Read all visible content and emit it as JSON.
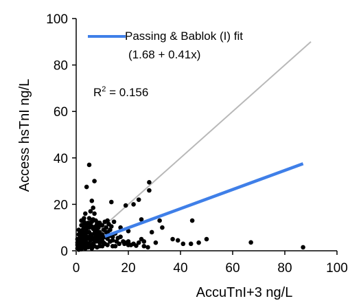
{
  "chart_data": {
    "type": "scatter",
    "xlabel": "AccuTnI+3 ng/L",
    "ylabel": "Access hsTnI ng/L",
    "xlim": [
      0,
      100
    ],
    "ylim": [
      0,
      100
    ],
    "x_ticks": [
      "0",
      "20",
      "40",
      "60",
      "80",
      "100"
    ],
    "y_ticks": [
      "0",
      "20",
      "40",
      "60",
      "80",
      "100"
    ],
    "grid": false,
    "colors": {
      "fit": "#3f7fe8",
      "identity": "#b8b8b8",
      "points": "#000000"
    },
    "legend": {
      "label": "Passing & Bablok (I) fit",
      "equation": "(1.68 + 0.41x)",
      "position": "top-left"
    },
    "r2": {
      "prefix": "R",
      "sup": "2",
      "value": " = 0.156"
    },
    "identity_line": {
      "x": [
        0,
        90
      ],
      "y": [
        0,
        90
      ]
    },
    "fit_line": {
      "x": [
        11,
        87
      ],
      "y": [
        6.2,
        37.5
      ]
    },
    "points": [
      [
        87,
        1.5
      ],
      [
        67,
        3.6
      ],
      [
        50,
        5
      ],
      [
        47,
        3.5
      ],
      [
        44.5,
        13
      ],
      [
        44,
        3
      ],
      [
        41,
        3
      ],
      [
        39,
        4.5
      ],
      [
        37,
        5
      ],
      [
        33,
        10
      ],
      [
        32,
        13
      ],
      [
        30.5,
        3.5
      ],
      [
        29,
        8
      ],
      [
        28,
        29.5
      ],
      [
        28,
        26
      ],
      [
        27.5,
        1.5
      ],
      [
        26,
        2
      ],
      [
        25,
        13.5
      ],
      [
        25,
        5
      ],
      [
        24,
        22
      ],
      [
        23,
        2.2
      ],
      [
        22,
        20
      ],
      [
        21,
        2.5
      ],
      [
        20,
        8.5
      ],
      [
        20,
        2.5
      ],
      [
        19,
        19.5
      ],
      [
        18.5,
        3
      ],
      [
        17,
        10
      ],
      [
        16.5,
        3
      ],
      [
        15,
        7.5
      ],
      [
        14.5,
        12.5
      ],
      [
        14,
        4.5
      ],
      [
        13.5,
        21
      ],
      [
        13,
        9
      ],
      [
        12.5,
        11.5
      ],
      [
        12,
        13
      ],
      [
        12,
        5.2
      ],
      [
        11.5,
        8
      ],
      [
        11,
        12.5
      ],
      [
        10.5,
        3.5
      ],
      [
        10,
        7
      ],
      [
        9.5,
        4
      ],
      [
        9,
        12
      ],
      [
        9,
        3.5
      ],
      [
        8.5,
        10
      ],
      [
        8,
        4.5
      ],
      [
        8,
        8.5
      ],
      [
        7.5,
        13
      ],
      [
        7,
        30
      ],
      [
        7,
        16
      ],
      [
        7,
        2
      ],
      [
        6.5,
        18.5
      ],
      [
        6.5,
        9.5
      ],
      [
        6,
        21.5
      ],
      [
        6,
        7
      ],
      [
        6,
        1
      ],
      [
        5.5,
        17
      ],
      [
        5.5,
        11
      ],
      [
        5.5,
        4.5
      ],
      [
        5,
        37
      ],
      [
        5,
        14
      ],
      [
        5,
        8
      ],
      [
        5,
        3
      ],
      [
        4.5,
        12
      ],
      [
        4.5,
        6
      ],
      [
        4.5,
        1.5
      ],
      [
        4,
        27.5
      ],
      [
        4,
        10
      ],
      [
        4,
        5
      ],
      [
        4,
        2.5
      ],
      [
        3.5,
        16
      ],
      [
        3.5,
        8
      ],
      [
        3.5,
        4
      ],
      [
        3.5,
        1
      ],
      [
        3,
        14
      ],
      [
        3,
        6.5
      ],
      [
        3,
        3
      ],
      [
        2.5,
        11
      ],
      [
        2.5,
        7
      ],
      [
        2.5,
        4.5
      ],
      [
        2.5,
        1.5
      ],
      [
        2,
        8
      ],
      [
        2,
        5
      ],
      [
        2,
        2.5
      ],
      [
        2,
        0.7
      ],
      [
        1.5,
        6
      ],
      [
        1.5,
        3.5
      ],
      [
        1.5,
        1
      ],
      [
        1,
        4
      ],
      [
        1,
        2
      ],
      [
        1,
        0.5
      ],
      [
        0.5,
        2.5
      ],
      [
        0.5,
        1
      ],
      [
        11,
        6
      ],
      [
        10,
        5
      ],
      [
        9,
        2
      ],
      [
        8,
        1.5
      ],
      [
        7.5,
        6
      ],
      [
        6.5,
        3
      ],
      [
        12,
        2.5
      ],
      [
        13,
        6.5
      ],
      [
        11.5,
        10
      ],
      [
        10.5,
        9
      ],
      [
        9.5,
        11
      ],
      [
        8.5,
        7
      ],
      [
        8,
        11.5
      ],
      [
        7,
        9
      ],
      [
        6,
        12.5
      ],
      [
        5,
        10
      ],
      [
        4,
        8.5
      ],
      [
        3,
        10
      ],
      [
        2,
        11
      ],
      [
        1,
        7
      ],
      [
        0.5,
        5
      ],
      [
        7.5,
        4
      ],
      [
        6.5,
        5.5
      ],
      [
        5.5,
        6.5
      ],
      [
        4.5,
        8
      ],
      [
        3.5,
        7
      ],
      [
        2.5,
        9
      ],
      [
        1.5,
        8
      ],
      [
        9,
        8
      ],
      [
        10,
        11
      ],
      [
        11,
        3
      ],
      [
        12,
        8
      ],
      [
        13,
        4
      ],
      [
        14,
        6
      ],
      [
        15,
        2
      ],
      [
        16,
        5.5
      ],
      [
        17,
        6
      ],
      [
        18,
        4
      ],
      [
        19,
        3.5
      ],
      [
        20,
        4
      ],
      [
        22,
        3
      ],
      [
        24,
        3.5
      ],
      [
        26,
        4
      ],
      [
        3,
        1.5
      ],
      [
        4,
        3.5
      ],
      [
        5,
        5.5
      ],
      [
        6,
        2.5
      ],
      [
        7,
        4.5
      ],
      [
        8,
        6
      ],
      [
        9,
        5.5
      ],
      [
        10,
        2
      ],
      [
        6,
        10.5
      ],
      [
        7,
        7.5
      ],
      [
        8,
        9.5
      ],
      [
        5,
        12
      ],
      [
        4,
        11.5
      ],
      [
        3,
        12.5
      ],
      [
        2,
        13
      ],
      [
        6.5,
        13.5
      ],
      [
        7.5,
        10.5
      ],
      [
        8.5,
        12
      ],
      [
        9.5,
        6.5
      ],
      [
        5.5,
        2
      ],
      [
        4.5,
        3
      ],
      [
        3.5,
        5.5
      ],
      [
        2.5,
        6
      ],
      [
        1.5,
        5
      ],
      [
        1,
        9
      ],
      [
        0.5,
        3.5
      ],
      [
        12.5,
        7
      ],
      [
        13.5,
        10.5
      ],
      [
        14,
        2
      ],
      [
        15.5,
        4
      ]
    ]
  }
}
